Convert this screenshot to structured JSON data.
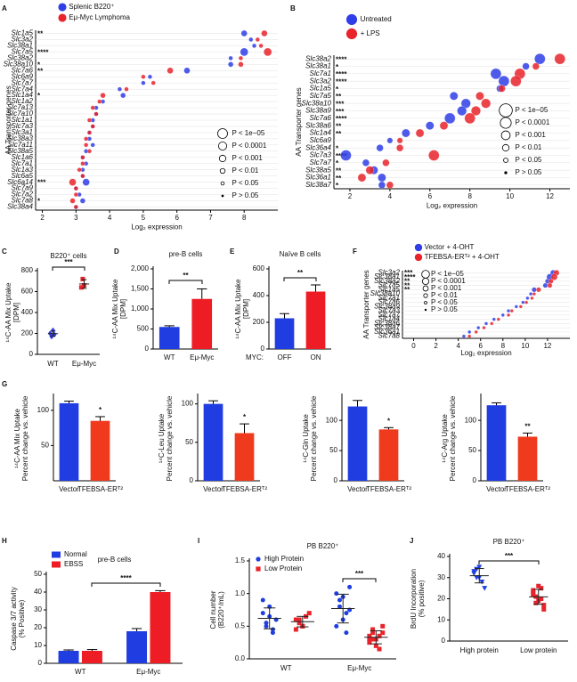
{
  "chart_data": [
    {
      "panel": "A",
      "type": "dotplot",
      "ylabel": "AA Transporter genes",
      "xlabel": "Log₂ expression",
      "xlim": [
        1.8,
        9
      ],
      "xticks": [
        2,
        3,
        4,
        5,
        6,
        7,
        8
      ],
      "categories": [
        "Slc1a5",
        "Slc3a2",
        "Slc38a1",
        "Slc7a5",
        "Slc38a2",
        "Slc38a10",
        "Slc7a6",
        "Slc6a9",
        "Slc7a7",
        "Slc7a4",
        "Slc1a4",
        "Slc1a2",
        "Slc7a13",
        "Slc7a10",
        "Slc1a1",
        "Slc7a3",
        "Slc3a1",
        "Slc38a3",
        "Slc7a11",
        "Slc38a5",
        "Slc1a6",
        "Slc7a1",
        "Slc1a3",
        "Slc6a5",
        "Slc6a14",
        "Slc7a9",
        "Slc7a2",
        "Slc7a8",
        "Slc38a4"
      ],
      "stars": [
        "**",
        null,
        null,
        "****",
        null,
        "*",
        "**",
        null,
        null,
        null,
        "*",
        null,
        null,
        null,
        null,
        null,
        null,
        null,
        null,
        null,
        null,
        null,
        null,
        null,
        "***",
        null,
        null,
        "*",
        null
      ],
      "series": [
        {
          "name": "Splenic B220⁺",
          "color": "#2f3ee6",
          "values": [
            8.0,
            8.2,
            8.3,
            8.0,
            7.6,
            7.6,
            6.3,
            5.2,
            5.0,
            4.3,
            4.4,
            3.8,
            3.6,
            3.6,
            3.5,
            3.5,
            3.4,
            3.4,
            3.5,
            3.3,
            3.2,
            3.3,
            3.2,
            3.2,
            3.3,
            3.0,
            3.1,
            3.2,
            3.0
          ]
        },
        {
          "name": "Eμ-Myc Lymphoma",
          "color": "#e8232a",
          "values": [
            8.6,
            8.4,
            8.5,
            8.7,
            7.9,
            7.9,
            5.8,
            5.0,
            5.3,
            4.5,
            3.8,
            3.7,
            3.5,
            3.6,
            3.4,
            3.5,
            3.4,
            3.3,
            3.3,
            3.4,
            3.2,
            3.2,
            3.1,
            3.2,
            2.9,
            3.0,
            3.0,
            2.9,
            3.0
          ]
        }
      ],
      "p_legend": [
        "P < 1e−05",
        "P < 0.0001",
        "P < 0.001",
        "P < 0.01",
        "P < 0.05",
        "P > 0.05"
      ]
    },
    {
      "panel": "B",
      "type": "dotplot",
      "ylabel": "AA Transporter genes",
      "xlabel": "Log₂ expression",
      "xlim": [
        1.2,
        13
      ],
      "xticks": [
        2,
        4,
        6,
        8,
        10,
        12
      ],
      "categories": [
        "Slc38a2",
        "Slc38a1",
        "Slc7a1",
        "Slc3a2",
        "Slc1a5",
        "Slc7a5",
        "Slc38a10",
        "Slc38a9",
        "Slc7a6",
        "Slc38a6",
        "Slc1a4",
        "Slc6a9",
        "Slc36a4",
        "Slc7a3",
        "Slc7a7",
        "Slc38a5",
        "Slc36a1",
        "Slc38a7"
      ],
      "stars": [
        "****",
        "*",
        "****",
        "****",
        "*",
        "**",
        "***",
        "***",
        "****",
        "**",
        "**",
        null,
        "*",
        "****",
        "*",
        "**",
        "**",
        "*"
      ],
      "series": [
        {
          "name": "Untreated",
          "color": "#2f3ee6",
          "values": [
            11.5,
            10.8,
            9.3,
            9.7,
            9.5,
            7.2,
            7.8,
            7.6,
            7.0,
            6.0,
            4.8,
            4.0,
            3.5,
            1.8,
            2.8,
            3.2,
            3.6,
            3.6
          ]
        },
        {
          "name": "+ LPS",
          "color": "#e8232a",
          "values": [
            12.5,
            11.3,
            10.5,
            10.3,
            9.6,
            8.5,
            8.8,
            8.3,
            8.0,
            6.7,
            5.5,
            4.5,
            4.5,
            6.2,
            3.8,
            3.0,
            2.6,
            4.0
          ]
        }
      ],
      "p_legend": [
        "P < 1e−05",
        "P < 0.0001",
        "P < 0.001",
        "P < 0.01",
        "P < 0.05",
        "P > 0.05"
      ]
    },
    {
      "panel": "C",
      "type": "strip",
      "title": "B220⁺ cells",
      "ylabel": "¹⁴C-AA Mix Uptake",
      "ylabel2": "[DPM]",
      "ylim": [
        0,
        800
      ],
      "yticks": [
        0,
        200,
        400,
        600,
        800
      ],
      "categories": [
        "WT",
        "Eμ-Myc"
      ],
      "significance": "***",
      "series": [
        {
          "color": "#2f3ee6",
          "marker": "diamond",
          "values": [
            [
              200,
              170,
              230,
              190
            ],
            null
          ],
          "mean": [
            198,
            null
          ],
          "sd": [
            25,
            null
          ]
        },
        {
          "color": "#e8232a",
          "marker": "square",
          "values": [
            null,
            [
              640,
              720,
              660
            ]
          ],
          "mean": [
            null,
            673
          ],
          "sd": [
            null,
            42
          ]
        }
      ]
    },
    {
      "panel": "D",
      "type": "bar",
      "title": "pre-B cells",
      "ylabel": "¹⁴C-AA Mix Uptake",
      "ylabel2": "[DPM]",
      "ylim": [
        0,
        2000
      ],
      "yticks": [
        0,
        500,
        {
          "value": 1000,
          "label": "1,000"
        },
        {
          "value": 1500,
          "label": "1,500"
        },
        {
          "value": 2000,
          "label": "2,000"
        }
      ],
      "categories": [
        "WT",
        "Eμ-Myc"
      ],
      "values": [
        550,
        1250
      ],
      "errors": [
        30,
        250
      ],
      "colors": [
        "#1f3de0",
        "#ee1c24"
      ],
      "significance": "**"
    },
    {
      "panel": "E",
      "type": "bar",
      "title": "Naïve B cells",
      "ylabel": "¹⁴C-AA Mix Uptake",
      "ylabel2": "[DPM]",
      "ylim": [
        0,
        600
      ],
      "yticks": [
        0,
        200,
        400,
        600
      ],
      "category_prefix": "MYC:",
      "categories": [
        "OFF",
        "ON"
      ],
      "values": [
        230,
        430
      ],
      "errors": [
        35,
        50
      ],
      "colors": [
        "#1f3de0",
        "#ee1c24"
      ],
      "significance": "**"
    },
    {
      "panel": "F",
      "type": "dotplot",
      "ylabel": "AA Transporter genes",
      "xlabel": "Log₂ expression",
      "xlim": [
        -1,
        14
      ],
      "xticks": [
        0,
        2,
        4,
        6,
        8,
        10,
        12
      ],
      "categories": [
        "Slc3a2",
        "Slc38a1",
        "Slc38a2",
        "Slc7a5",
        "Slc1a5",
        "Slc38a10",
        "Slc7a1",
        "Slc7a6",
        "Slc38a9",
        "Slc7a3",
        "Slc7a7",
        "Slc1a4",
        "Slc38a6",
        "Slc38a7",
        "Slc36a1",
        "Slc7a8"
      ],
      "stars": [
        "***",
        "****",
        "**",
        "**",
        "**",
        null,
        null,
        null,
        null,
        null,
        null,
        null,
        null,
        null,
        null,
        null
      ],
      "series": [
        {
          "name": "Vector + 4-OHT",
          "color": "#2f3ee6",
          "values": [
            12.5,
            12.2,
            12.0,
            11.8,
            10.8,
            10.5,
            10.2,
            9.8,
            9.2,
            8.5,
            8.0,
            7.2,
            6.5,
            5.8,
            5.0,
            4.5
          ]
        },
        {
          "name": "TFEBSA-ERᵀ² + 4-OHT",
          "color": "#e8232a",
          "values": [
            12.8,
            12.6,
            12.3,
            12.2,
            11.2,
            10.8,
            10.6,
            10.1,
            9.6,
            8.8,
            8.5,
            7.6,
            7.0,
            6.3,
            5.6,
            5.0
          ]
        }
      ],
      "p_legend": [
        "P < 1e−05",
        "P < 0.0001",
        "P < 0.001",
        "P < 0.01",
        "P < 0.05",
        "P > 0.05"
      ]
    },
    {
      "panel": "G",
      "type": "bar",
      "ylabel": "¹⁴C-AA Mix Uptake",
      "ylabel2": "Percent change vs. vehicle",
      "ylim": [
        0,
        120
      ],
      "yticks": [
        50,
        100
      ],
      "categories": [
        "Vector",
        "TFEBSA-ERᵀ²"
      ],
      "values": [
        110,
        85
      ],
      "errors": [
        3,
        6
      ],
      "colors": [
        "#1f3de0",
        "#f03a1e"
      ],
      "significance": "*"
    },
    {
      "type": "bar",
      "ylabel": "¹⁴C-Leu Uptake",
      "ylabel2": "Percent change vs. vehicle",
      "ylim": [
        0,
        110
      ],
      "yticks": [
        0,
        50,
        100
      ],
      "categories": [
        "Vector",
        "TFEBSA-ERᵀ²"
      ],
      "values": [
        100,
        62
      ],
      "errors": [
        4,
        12
      ],
      "colors": [
        "#1f3de0",
        "#f03a1e"
      ],
      "significance": "*"
    },
    {
      "type": "bar",
      "ylabel": "¹⁴C-Gln Uptake",
      "ylabel2": "Percent change vs. vehicle",
      "ylim": [
        0,
        140
      ],
      "yticks": [
        0,
        50,
        100
      ],
      "categories": [
        "Vector",
        "TFEBSA-ERᵀ²"
      ],
      "values": [
        123,
        85
      ],
      "errors": [
        10,
        3
      ],
      "colors": [
        "#1f3de0",
        "#f03a1e"
      ],
      "significance": "*"
    },
    {
      "type": "bar",
      "ylabel": "¹⁴C-Arg Uptake",
      "ylabel2": "Percent change vs. vehicle",
      "ylim": [
        0,
        140
      ],
      "yticks": [
        0,
        50,
        100
      ],
      "categories": [
        "Vector",
        "TFEBSA-ERᵀ²"
      ],
      "values": [
        125,
        73
      ],
      "errors": [
        4,
        6
      ],
      "colors": [
        "#1f3de0",
        "#f03a1e"
      ],
      "significance": "**"
    },
    {
      "panel": "H",
      "type": "grouped_bar",
      "title": "pre-B cells",
      "ylabel": "Caspase 3/7 activity",
      "ylabel2": "(% Positive)",
      "ylim": [
        0,
        50
      ],
      "yticks": [
        0,
        10,
        20,
        30,
        40,
        50
      ],
      "categories": [
        "WT",
        "Eμ-Myc"
      ],
      "significance": "****",
      "series": [
        {
          "name": "Normal",
          "color": "#1f3de0",
          "values": [
            7,
            18
          ],
          "errors": [
            0.5,
            1.5
          ]
        },
        {
          "name": "EBSS",
          "color": "#ee1c24",
          "values": [
            7,
            40
          ],
          "errors": [
            0.7,
            0.8
          ]
        }
      ]
    },
    {
      "panel": "I",
      "type": "strip",
      "title": "PB B220⁺",
      "ylabel": "Cell number",
      "ylabel2": "(B220⁺/mL)",
      "ylim": [
        0,
        1.5
      ],
      "yticks": [
        {
          "value": 0,
          "label": "0.0"
        },
        0.5,
        {
          "value": 1,
          "label": "1.0"
        },
        1.5
      ],
      "categories": [
        "WT",
        "Eμ-Myc"
      ],
      "significance": "***",
      "series": [
        {
          "name": "High Protein",
          "color": "#1f3de0",
          "marker": "circle",
          "values": [
            [
              0.7,
              0.5,
              0.8,
              0.4,
              0.6,
              0.9,
              0.55,
              0.65,
              0.45
            ],
            [
              1.0,
              0.9,
              0.6,
              0.7,
              1.1,
              0.5,
              0.8,
              0.95,
              0.4,
              0.75
            ]
          ],
          "mean": [
            0.62,
            0.77
          ],
          "sd": [
            0.16,
            0.22
          ]
        },
        {
          "name": "Low Protein",
          "color": "#e8232a",
          "marker": "square",
          "values": [
            [
              0.6,
              0.55,
              0.5,
              0.65,
              0.7,
              0.45,
              0.6,
              0.5
            ],
            [
              0.3,
              0.4,
              0.2,
              0.35,
              0.5,
              0.25,
              0.45,
              0.3,
              0.15,
              0.4,
              0.35,
              0.3
            ]
          ],
          "mean": [
            0.57,
            0.33
          ],
          "sd": [
            0.08,
            0.1
          ]
        }
      ]
    },
    {
      "panel": "J",
      "type": "strip",
      "title": "PB B220⁺",
      "ylabel": "BrdU Incorporation",
      "ylabel2": "(% positive)",
      "ylim": [
        0,
        40
      ],
      "yticks": [
        0,
        10,
        20,
        30,
        40
      ],
      "categories": [
        "High protein",
        "Low protein"
      ],
      "significance": "***",
      "series": [
        {
          "color": "#1f3de0",
          "marker": "triangle",
          "values": [
            [
              33,
              30,
              35,
              28,
              25,
              32,
              34,
              30
            ],
            null
          ],
          "mean": [
            30.9,
            null
          ],
          "sd": [
            3.4,
            null
          ]
        },
        {
          "color": "#e8232a",
          "marker": "square",
          "values": [
            null,
            [
              22,
              18,
              26,
              20,
              15,
              24,
              21,
              19,
              25,
              17,
              23
            ]
          ],
          "mean": [
            null,
            20.9
          ],
          "sd": [
            null,
            3.5
          ]
        }
      ]
    }
  ]
}
